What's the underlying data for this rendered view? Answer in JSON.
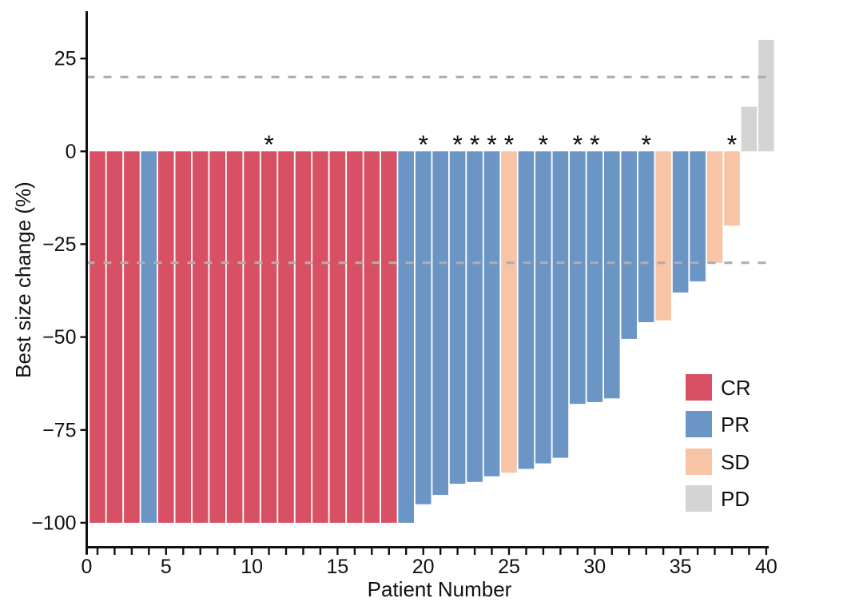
{
  "chart_data": {
    "type": "bar",
    "subtype": "waterfall",
    "title": "",
    "xlabel": "Patient Number",
    "ylabel": "Best size change (%)",
    "x_axis": {
      "min": 0,
      "max": 40,
      "minor_tick_every": 1,
      "label_every": 5,
      "tick_labels": [
        "0",
        "5",
        "10",
        "15",
        "20",
        "25",
        "30",
        "35",
        "40"
      ]
    },
    "y_axis": {
      "range": [
        -106.5,
        37.5
      ],
      "ticks": [
        25,
        0,
        -25,
        -50,
        -75,
        -100
      ],
      "tick_labels": [
        "25",
        "0",
        "−25",
        "−50",
        "−75",
        "−100"
      ]
    },
    "reference_lines": [
      {
        "y": 20,
        "style": "dashed"
      },
      {
        "y": -30,
        "style": "dashed"
      }
    ],
    "asterisk_marker": "*",
    "grid": "off",
    "legend_position": "inside-right",
    "legend": [
      {
        "key": "CR",
        "label": "CR"
      },
      {
        "key": "PR",
        "label": "PR"
      },
      {
        "key": "SD",
        "label": "SD"
      },
      {
        "key": "PD",
        "label": "PD"
      }
    ],
    "colors": {
      "CR": "#d75063",
      "PR": "#6b95c4",
      "SD": "#f7c4a6",
      "PD": "#d4d4d4",
      "reference_line": "#aeaeae",
      "axis": "#111111"
    },
    "patients": [
      {
        "patient": 1,
        "value": -100,
        "response": "CR",
        "asterisk": false
      },
      {
        "patient": 2,
        "value": -100,
        "response": "CR",
        "asterisk": false
      },
      {
        "patient": 3,
        "value": -100,
        "response": "CR",
        "asterisk": false
      },
      {
        "patient": 4,
        "value": -100,
        "response": "PR",
        "asterisk": false
      },
      {
        "patient": 5,
        "value": -100,
        "response": "CR",
        "asterisk": false
      },
      {
        "patient": 6,
        "value": -100,
        "response": "CR",
        "asterisk": false
      },
      {
        "patient": 7,
        "value": -100,
        "response": "CR",
        "asterisk": false
      },
      {
        "patient": 8,
        "value": -100,
        "response": "CR",
        "asterisk": false
      },
      {
        "patient": 9,
        "value": -100,
        "response": "CR",
        "asterisk": false
      },
      {
        "patient": 10,
        "value": -100,
        "response": "CR",
        "asterisk": false
      },
      {
        "patient": 11,
        "value": -100,
        "response": "CR",
        "asterisk": true
      },
      {
        "patient": 12,
        "value": -100,
        "response": "CR",
        "asterisk": false
      },
      {
        "patient": 13,
        "value": -100,
        "response": "CR",
        "asterisk": false
      },
      {
        "patient": 14,
        "value": -100,
        "response": "CR",
        "asterisk": false
      },
      {
        "patient": 15,
        "value": -100,
        "response": "CR",
        "asterisk": false
      },
      {
        "patient": 16,
        "value": -100,
        "response": "CR",
        "asterisk": false
      },
      {
        "patient": 17,
        "value": -100,
        "response": "CR",
        "asterisk": false
      },
      {
        "patient": 18,
        "value": -100,
        "response": "CR",
        "asterisk": false
      },
      {
        "patient": 19,
        "value": -100,
        "response": "PR",
        "asterisk": false
      },
      {
        "patient": 20,
        "value": -95,
        "response": "PR",
        "asterisk": true
      },
      {
        "patient": 21,
        "value": -92.5,
        "response": "PR",
        "asterisk": false
      },
      {
        "patient": 22,
        "value": -89.5,
        "response": "PR",
        "asterisk": true
      },
      {
        "patient": 23,
        "value": -89,
        "response": "PR",
        "asterisk": true
      },
      {
        "patient": 24,
        "value": -87.5,
        "response": "PR",
        "asterisk": true
      },
      {
        "patient": 25,
        "value": -86.5,
        "response": "SD",
        "asterisk": true
      },
      {
        "patient": 26,
        "value": -85.5,
        "response": "PR",
        "asterisk": false
      },
      {
        "patient": 27,
        "value": -84,
        "response": "PR",
        "asterisk": true
      },
      {
        "patient": 28,
        "value": -82.5,
        "response": "PR",
        "asterisk": false
      },
      {
        "patient": 29,
        "value": -68,
        "response": "PR",
        "asterisk": true
      },
      {
        "patient": 30,
        "value": -67.5,
        "response": "PR",
        "asterisk": true
      },
      {
        "patient": 31,
        "value": -66.5,
        "response": "PR",
        "asterisk": false
      },
      {
        "patient": 32,
        "value": -50.5,
        "response": "PR",
        "asterisk": false
      },
      {
        "patient": 33,
        "value": -46,
        "response": "PR",
        "asterisk": true
      },
      {
        "patient": 34,
        "value": -45.5,
        "response": "SD",
        "asterisk": false
      },
      {
        "patient": 35,
        "value": -38,
        "response": "PR",
        "asterisk": false
      },
      {
        "patient": 36,
        "value": -35,
        "response": "PR",
        "asterisk": false
      },
      {
        "patient": 37,
        "value": -30,
        "response": "SD",
        "asterisk": false
      },
      {
        "patient": 38,
        "value": -20,
        "response": "SD",
        "asterisk": true
      },
      {
        "patient": 39,
        "value": 12,
        "response": "PD",
        "asterisk": false
      },
      {
        "patient": 40,
        "value": 30,
        "response": "PD",
        "asterisk": false
      }
    ]
  }
}
